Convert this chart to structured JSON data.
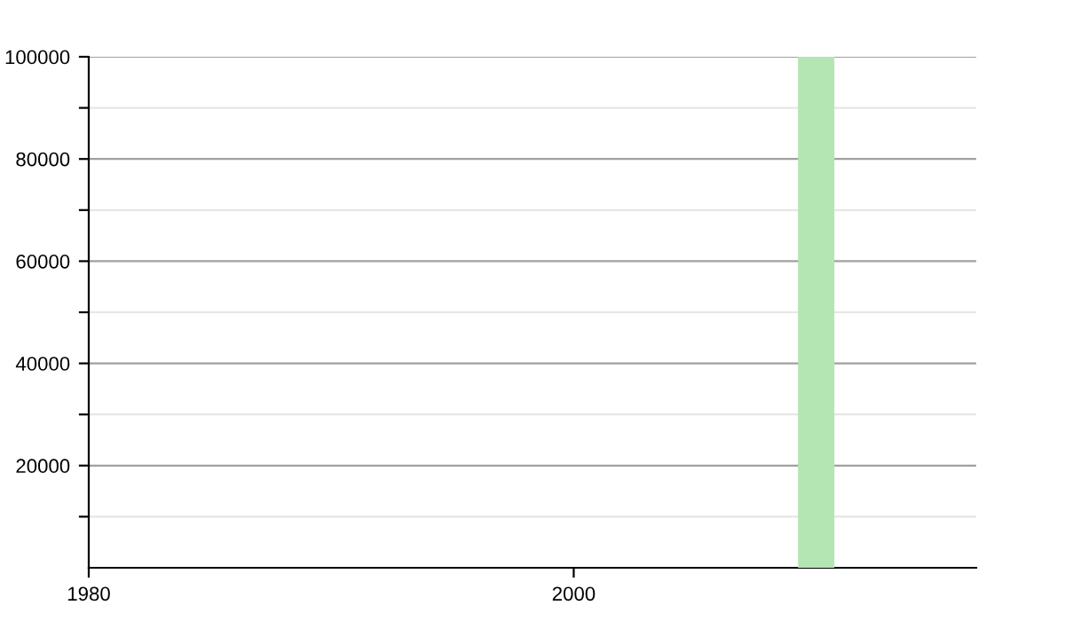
{
  "chart_data": {
    "type": "bar",
    "x": [
      2010
    ],
    "values": [
      100000
    ],
    "color": "#b3e6b3",
    "xlim": [
      1980,
      2016.6
    ],
    "xticks": [
      1980,
      2000
    ],
    "ylim": [
      0,
      100000
    ],
    "yticks": [
      {
        "value": 10000,
        "label": null
      },
      20000,
      {
        "value": 30000,
        "label": null
      },
      40000,
      {
        "value": 50000,
        "label": null
      },
      60000,
      {
        "value": 70000,
        "label": null
      },
      80000,
      {
        "value": 90000,
        "label": null
      },
      100000
    ],
    "grid": "y"
  }
}
